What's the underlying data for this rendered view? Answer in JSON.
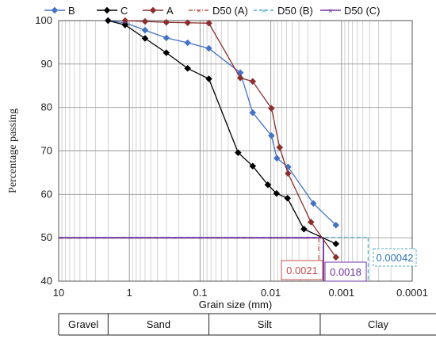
{
  "chart_data": {
    "type": "line",
    "xlabel": "Grain size (mm)",
    "ylabel": "Percentage passing",
    "x_scale": "log",
    "x_reversed": true,
    "xlim": [
      10,
      0.0001
    ],
    "ylim": [
      40,
      100
    ],
    "x_ticks": [
      "10",
      "1",
      "0.1",
      "0.01",
      "0.001",
      "0.0001"
    ],
    "y_ticks": [
      "40",
      "50",
      "60",
      "70",
      "80",
      "90",
      "100"
    ],
    "grid": true,
    "legend_position": "top",
    "series": [
      {
        "name": "B",
        "color": "#4472C4",
        "marker": "diamond",
        "x": [
          2.0,
          1.15,
          0.6,
          0.3,
          0.15,
          0.075,
          0.027,
          0.018,
          0.0098,
          0.0082,
          0.0057,
          0.0025,
          0.0012
        ],
        "y": [
          100,
          99.5,
          97.8,
          96.0,
          94.9,
          93.6,
          88.0,
          78.8,
          73.5,
          68.3,
          66.3,
          57.9,
          52.9
        ]
      },
      {
        "name": "C",
        "color": "#000000",
        "marker": "diamond",
        "x": [
          2.0,
          1.15,
          0.6,
          0.3,
          0.15,
          0.075,
          0.029,
          0.018,
          0.011,
          0.0083,
          0.0058,
          0.0034,
          0.0012
        ],
        "y": [
          100,
          99.0,
          95.9,
          92.6,
          89.0,
          86.6,
          69.6,
          66.5,
          62.2,
          60.2,
          59.1,
          52.0,
          48.6
        ]
      },
      {
        "name": "A",
        "color": "#8B2E2E",
        "marker": "diamond",
        "x": [
          1.15,
          0.6,
          0.3,
          0.15,
          0.075,
          0.027,
          0.018,
          0.0098,
          0.0075,
          0.0057,
          0.0027,
          0.0012
        ],
        "y": [
          100,
          99.8,
          99.6,
          99.5,
          99.4,
          86.8,
          86.0,
          79.8,
          70.8,
          64.8,
          53.6,
          45.5
        ]
      },
      {
        "name": "D50 (A)",
        "color": "#C0504D",
        "style": "dash-dot"
      },
      {
        "name": "D50 (B)",
        "color": "#4BACC6",
        "style": "dashed"
      },
      {
        "name": "D50 (C)",
        "color": "#7030A0",
        "style": "solid"
      }
    ],
    "d50_line_y": 50,
    "annotations": [
      {
        "text": "0.0021",
        "x": 0.0021,
        "color": "#C0504D"
      },
      {
        "text": "0.0018",
        "x": 0.0018,
        "color": "#7030A0"
      },
      {
        "text": "0.00042",
        "x": 0.00042,
        "color": "#2E75B6"
      }
    ],
    "soil_classes": [
      "Gravel",
      "Sand",
      "Silt",
      "Clay"
    ],
    "soil_class_bounds": [
      10,
      2,
      0.075,
      0.002,
      0.0001
    ]
  }
}
